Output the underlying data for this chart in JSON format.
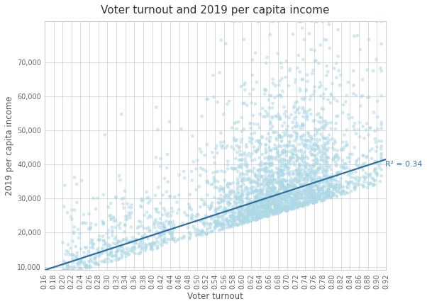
{
  "title": "Voter turnout and 2019 per capita income",
  "xlabel": "Voter turnout",
  "ylabel": "2019 per capita income",
  "r_squared_label": "R² = 0.34",
  "xlim": [
    0.16,
    0.92
  ],
  "ylim": [
    9000,
    82000
  ],
  "xtick_step": 0.02,
  "yticks": [
    10000,
    20000,
    30000,
    40000,
    50000,
    60000,
    70000
  ],
  "scatter_color": "#add8e6",
  "scatter_alpha": 0.55,
  "scatter_size": 12,
  "line_color": "#2e6e9e",
  "line_width": 1.6,
  "regression_x0": 0.16,
  "regression_x1": 0.92,
  "regression_y0": 9000,
  "regression_y1": 41500,
  "n_points": 3000,
  "seed": 42,
  "background_color": "#ffffff",
  "grid_color": "#cccccc",
  "title_fontsize": 11,
  "axis_label_fontsize": 8.5,
  "tick_fontsize": 7
}
